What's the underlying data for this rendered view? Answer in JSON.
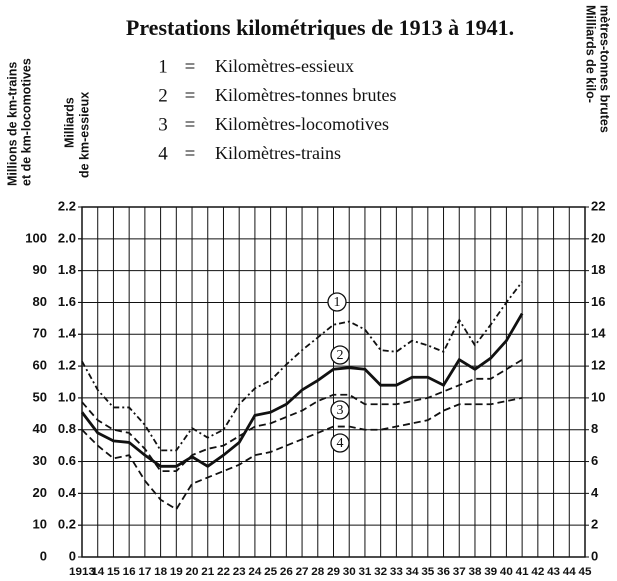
{
  "chart_data": {
    "type": "line",
    "title": "Prestations kilométriques de 1913 à 1941.",
    "legend_separator": "=",
    "axis_titles": {
      "y3": [
        "Millions de km-trains",
        "et de km-locomotives"
      ],
      "y": [
        "Milliards",
        "de km-essieux"
      ],
      "y2": [
        "Milliards de kilo-",
        "mètres-tonnes brutes"
      ]
    },
    "x": [
      1913,
      1914,
      1915,
      1916,
      1917,
      1918,
      1919,
      1920,
      1921,
      1922,
      1923,
      1924,
      1925,
      1926,
      1927,
      1928,
      1929,
      1930,
      1931,
      1932,
      1933,
      1934,
      1935,
      1936,
      1937,
      1938,
      1939,
      1940,
      1941
    ],
    "xlim": [
      1913,
      1945
    ],
    "xticks": [
      1913,
      {
        "value": 1914,
        "label": "14"
      },
      {
        "value": 1915,
        "label": "15"
      },
      {
        "value": 1916,
        "label": "16"
      },
      {
        "value": 1917,
        "label": "17"
      },
      {
        "value": 1918,
        "label": "18"
      },
      {
        "value": 1919,
        "label": "19"
      },
      {
        "value": 1920,
        "label": "20"
      },
      {
        "value": 1921,
        "label": "21"
      },
      {
        "value": 1922,
        "label": "22"
      },
      {
        "value": 1923,
        "label": "23"
      },
      {
        "value": 1924,
        "label": "24"
      },
      {
        "value": 1925,
        "label": "25"
      },
      {
        "value": 1926,
        "label": "26"
      },
      {
        "value": 1927,
        "label": "27"
      },
      {
        "value": 1928,
        "label": "28"
      },
      {
        "value": 1929,
        "label": "29"
      },
      {
        "value": 1930,
        "label": "30"
      },
      {
        "value": 1931,
        "label": "31"
      },
      {
        "value": 1932,
        "label": "32"
      },
      {
        "value": 1933,
        "label": "33"
      },
      {
        "value": 1934,
        "label": "34"
      },
      {
        "value": 1935,
        "label": "35"
      },
      {
        "value": 1936,
        "label": "36"
      },
      {
        "value": 1937,
        "label": "37"
      },
      {
        "value": 1938,
        "label": "38"
      },
      {
        "value": 1939,
        "label": "39"
      },
      {
        "value": 1940,
        "label": "40"
      },
      {
        "value": 1941,
        "label": "41"
      },
      {
        "value": 1942,
        "label": "42"
      },
      {
        "value": 1943,
        "label": "43"
      },
      {
        "value": 1944,
        "label": "44"
      },
      {
        "value": 1945,
        "label": "45"
      }
    ],
    "ylim": [
      0,
      2.2
    ],
    "yticks": [
      0,
      0.2,
      0.4,
      0.6,
      0.8,
      {
        "value": 1,
        "label": "1.0"
      },
      1.2,
      1.4,
      1.6,
      1.8,
      {
        "value": 2,
        "label": "2.0"
      },
      2.2
    ],
    "y2lim": [
      0,
      22
    ],
    "y2ticks": [
      0,
      2,
      4,
      6,
      8,
      10,
      12,
      14,
      16,
      18,
      20,
      22
    ],
    "y3lim": [
      0,
      110
    ],
    "y3ticks": [
      0,
      10,
      20,
      30,
      40,
      50,
      60,
      70,
      80,
      90,
      100
    ],
    "grid": true,
    "series": [
      {
        "name": "Kilomètres-essieux",
        "label": "1",
        "color": "#111",
        "style": "dashdot",
        "axis": "y",
        "values": [
          1.23,
          1.05,
          0.94,
          0.94,
          0.83,
          0.67,
          0.67,
          0.81,
          0.75,
          0.8,
          0.96,
          1.06,
          1.11,
          1.21,
          1.3,
          1.38,
          1.46,
          1.48,
          1.43,
          1.3,
          1.29,
          1.36,
          1.33,
          1.29,
          1.49,
          1.33,
          1.46,
          1.6,
          1.73
        ]
      },
      {
        "name": "Kilomètres-tonnes brutes",
        "label": "2",
        "color": "#111",
        "style": "solid",
        "axis": "y2",
        "values": [
          9.1,
          7.8,
          7.3,
          7.2,
          6.4,
          5.7,
          5.7,
          6.3,
          5.7,
          6.4,
          7.2,
          8.9,
          9.1,
          9.6,
          10.5,
          11.1,
          11.8,
          11.9,
          11.8,
          10.8,
          10.8,
          11.3,
          11.3,
          10.8,
          12.4,
          11.8,
          12.5,
          13.6,
          15.3
        ]
      },
      {
        "name": "Kilomètres-locomotives",
        "label": "3",
        "color": "#111",
        "style": "dashed",
        "axis": "y3",
        "values": [
          48.7,
          43,
          40,
          39,
          34,
          27,
          27,
          32,
          34,
          35,
          38,
          41,
          42,
          44,
          46,
          49,
          51,
          51,
          48,
          48,
          48,
          49,
          50,
          52,
          54,
          56,
          56,
          59,
          62
        ]
      },
      {
        "name": "Kilomètres-trains",
        "label": "4",
        "color": "#111",
        "style": "dashed",
        "axis": "y3",
        "values": [
          40,
          35,
          31,
          32,
          24,
          18,
          15,
          23,
          25,
          27,
          29,
          32,
          33,
          35,
          37,
          39,
          41,
          41,
          40,
          40,
          41,
          42,
          43,
          46,
          48,
          48,
          48,
          49,
          50
        ]
      }
    ]
  }
}
